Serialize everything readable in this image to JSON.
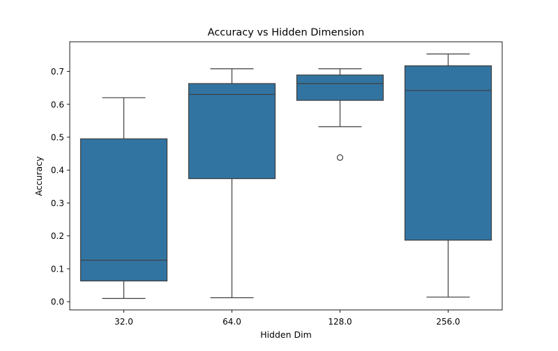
{
  "chart_data": {
    "type": "box",
    "title": "Accuracy vs Hidden Dimension",
    "xlabel": "Hidden Dim",
    "ylabel": "Accuracy",
    "ylim": [
      -0.025,
      0.79
    ],
    "yticks": [
      "0.0",
      "0.1",
      "0.2",
      "0.3",
      "0.4",
      "0.5",
      "0.6",
      "0.7"
    ],
    "grid": false,
    "box_color": "#3274a1",
    "line_color": "#3d3d3d",
    "categories": [
      "32.0",
      "64.0",
      "128.0",
      "256.0"
    ],
    "boxes": [
      {
        "whisker_low": 0.01,
        "q1": 0.063,
        "median": 0.126,
        "q3": 0.495,
        "whisker_high": 0.62,
        "outliers": []
      },
      {
        "whisker_low": 0.012,
        "q1": 0.374,
        "median": 0.63,
        "q3": 0.663,
        "whisker_high": 0.708,
        "outliers": []
      },
      {
        "whisker_low": 0.532,
        "q1": 0.612,
        "median": 0.663,
        "q3": 0.689,
        "whisker_high": 0.708,
        "outliers": [
          0.438
        ]
      },
      {
        "whisker_low": 0.014,
        "q1": 0.187,
        "median": 0.642,
        "q3": 0.717,
        "whisker_high": 0.753,
        "outliers": []
      }
    ]
  }
}
